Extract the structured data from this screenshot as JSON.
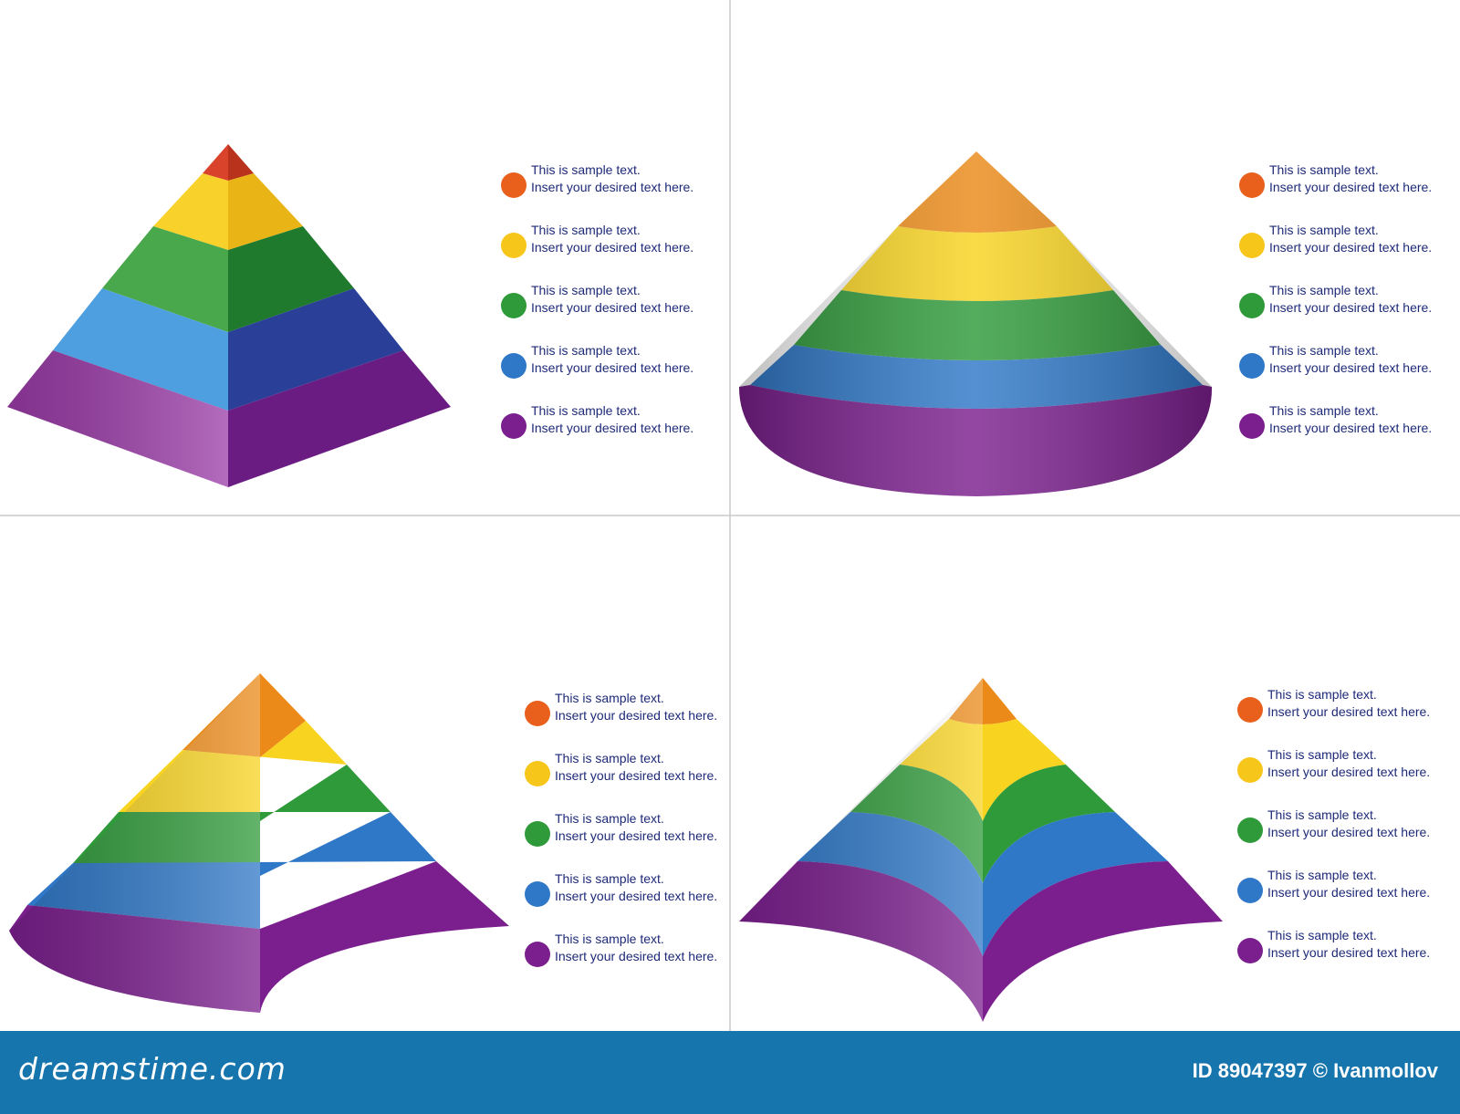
{
  "legend_items": [
    {
      "line1": "This is sample text.",
      "line2": "Insert your desired text here."
    },
    {
      "line1": "This is sample text.",
      "line2": "Insert your desired text here."
    },
    {
      "line1": "This is sample text.",
      "line2": "Insert your desired text here."
    },
    {
      "line1": "This is sample text.",
      "line2": "Insert your desired text here."
    },
    {
      "line1": "This is sample text.",
      "line2": "Insert your desired text here."
    }
  ],
  "layer_colors": {
    "red-orange": "#e8601c",
    "yellow": "#f7c61a",
    "green": "#2f9a3a",
    "blue": "#2f78c8",
    "purple": "#7b1f8e"
  },
  "footer": {
    "brand": "dreamstime.com",
    "id_text": "ID 89047397 © Ivanmollov"
  }
}
